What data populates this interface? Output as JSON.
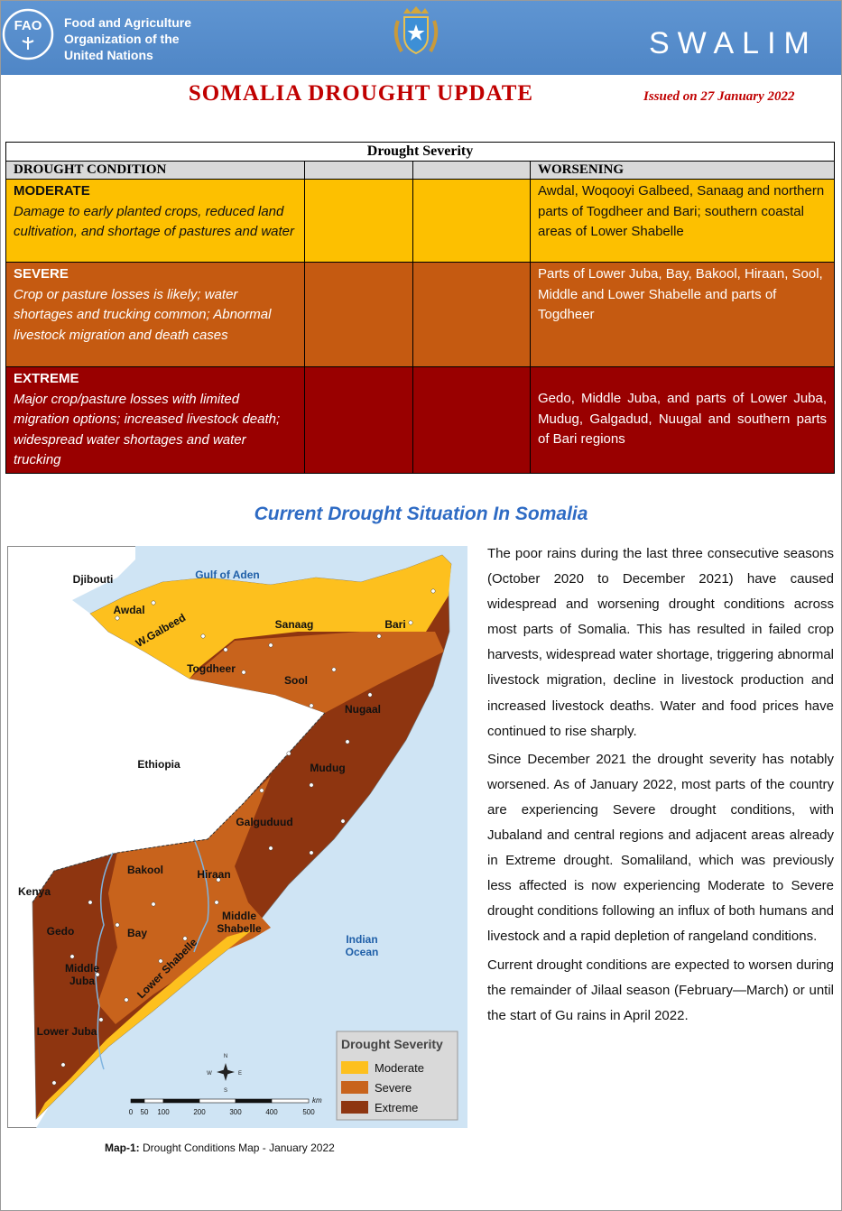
{
  "header": {
    "org": [
      "Food and Agriculture",
      "Organization of the",
      "United Nations"
    ],
    "fao": "FAO",
    "brand": "SWALIM"
  },
  "title": "SOMALIA DROUGHT UPDATE",
  "issued": "Issued on 27 January 2022",
  "table": {
    "caption": "Drought Severity",
    "condition_header": "DROUGHT CONDITION",
    "worsening_header": "WORSENING",
    "rows": [
      {
        "level": "MODERATE",
        "description": "Damage to early planted crops, reduced land cultivation, and shortage of pastures and water",
        "areas": "Awdal, Woqooyi Galbeed, Sanaag and northern parts of Togdheer and Bari; southern coastal areas of Lower Shabelle"
      },
      {
        "level": "SEVERE",
        "description": "Crop or pasture losses is likely; water shortages and trucking common; Abnormal livestock migration and death cases",
        "areas": "Parts of Lower Juba, Bay, Bakool, Hiraan, Sool, Middle and Lower Shabelle and parts of Togdheer"
      },
      {
        "level": "EXTREME",
        "description": "Major crop/pasture losses with limited migration options; increased livestock death; widespread water shortages and water trucking",
        "areas": "Gedo, Middle Juba, and parts of Lower Juba, Mudug, Galgadud, Nuugal and southern parts of Bari regions"
      }
    ]
  },
  "section_title": "Current Drought Situation In Somalia",
  "map": {
    "labels": [
      [
        "Djibouti"
      ],
      [
        "Gulf of Aden"
      ],
      [
        "Awdal"
      ],
      [
        "W.Galbeed"
      ],
      [
        "Sanaag"
      ],
      [
        "Bari"
      ],
      [
        "Togdheer"
      ],
      [
        "Sool"
      ],
      [
        "Nugaal"
      ],
      [
        "Ethiopia"
      ],
      [
        "Mudug"
      ],
      [
        "Galguduud"
      ],
      [
        "Bakool"
      ],
      [
        "Hiraan"
      ],
      [
        "Kenya"
      ],
      [
        "Middle",
        "Shabelle"
      ],
      [
        "Gedo"
      ],
      [
        "Bay"
      ],
      [
        "Indian",
        "Ocean"
      ],
      [
        "Middle",
        "Juba"
      ],
      [
        "Lower Shabelle"
      ],
      [
        "Lower Juba"
      ]
    ],
    "legend_title": "Drought Severity",
    "legend": [
      "Moderate",
      "Severe",
      "Extreme"
    ],
    "scale": [
      0,
      50,
      100,
      200,
      300,
      400,
      500
    ],
    "scale_unit": "km",
    "compass": [
      "N",
      "S",
      "E",
      "W"
    ],
    "caption_label": "Map-1:",
    "caption": "Drought Conditions Map  - January 2022"
  },
  "paragraphs": [
    "The poor rains during the last three consecutive seasons (October 2020 to December 2021) have caused widespread and worsening drought conditions across most parts of Somalia. This has resulted in failed crop harvests, widespread water shortage, triggering abnormal livestock migration, decline in livestock production and increased livestock deaths. Water and food prices have continued to rise sharply.",
    "Since December 2021 the drought severity has notably worsened. As of January 2022, most parts of the country are experiencing Severe drought conditions, with Jubaland and central regions and adjacent areas already in Extreme drought. Somaliland, which was previously less affected is now experiencing Moderate to Severe drought conditions following an influx of both humans and livestock and a rapid depletion of rangeland conditions.",
    "Current drought conditions are expected to worsen during the remainder of Jilaal season (February—March) or until the start of Gu rains in April 2022."
  ]
}
